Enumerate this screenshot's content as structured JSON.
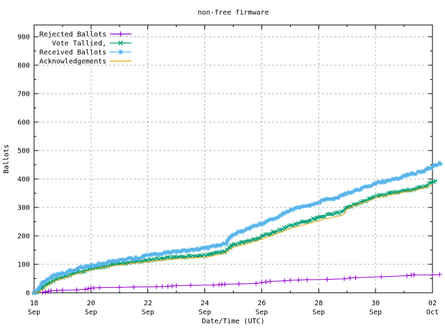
{
  "page": {
    "background": "#ffffff",
    "border_color": "#000000",
    "grid_color": "#b5b5b5"
  },
  "chart_data": {
    "type": "line",
    "title": "non-free firmware",
    "xlabel": "Date/Time (UTC)",
    "ylabel": "Ballots",
    "x_domain_labels": [
      "18 Sep",
      "02 Oct"
    ],
    "x_unit": "days from first tick (18 Sep) to last tick (02 Oct), 14 days total",
    "ylim": [
      0,
      940
    ],
    "grid": "dashed gray at major ticks",
    "legend_position": "top-left inside plot",
    "series": [
      {
        "name": "Rejected Ballots",
        "color": "#9400d3",
        "marker": "plus",
        "marker_mode": "points",
        "points": [
          [
            0.3,
            1
          ],
          [
            0.4,
            3
          ],
          [
            0.5,
            5
          ],
          [
            0.6,
            7
          ],
          [
            0.8,
            8
          ],
          [
            1,
            9
          ],
          [
            1.5,
            10
          ],
          [
            1.8,
            12
          ],
          [
            1.9,
            14
          ],
          [
            2,
            16
          ],
          [
            2.1,
            17
          ],
          [
            2.3,
            18
          ],
          [
            3,
            19
          ],
          [
            3.5,
            20
          ],
          [
            4.3,
            21
          ],
          [
            4.5,
            22
          ],
          [
            4.7,
            23
          ],
          [
            4.85,
            24
          ],
          [
            5,
            25
          ],
          [
            5.5,
            26
          ],
          [
            6.3,
            27
          ],
          [
            6.5,
            28
          ],
          [
            6.6,
            29
          ],
          [
            6.7,
            30
          ],
          [
            7.2,
            31
          ],
          [
            7.8,
            33
          ],
          [
            8,
            36
          ],
          [
            8.15,
            38
          ],
          [
            8.3,
            40
          ],
          [
            8.8,
            42
          ],
          [
            9,
            44
          ],
          [
            9.3,
            45
          ],
          [
            9.6,
            46
          ],
          [
            10.3,
            47
          ],
          [
            10.9,
            49
          ],
          [
            11.1,
            52
          ],
          [
            11.3,
            53
          ],
          [
            12.2,
            56
          ],
          [
            13.1,
            60
          ],
          [
            13.25,
            62
          ],
          [
            13.35,
            63
          ],
          [
            14,
            63
          ],
          [
            14.25,
            64
          ]
        ]
      },
      {
        "name": "Vote Tallied,",
        "color": "#009e73",
        "marker": "cross",
        "marker_mode": "dense",
        "points": [
          [
            0,
            0
          ],
          [
            0.15,
            6
          ],
          [
            0.3,
            18
          ],
          [
            0.45,
            30
          ],
          [
            0.6,
            40
          ],
          [
            0.8,
            48
          ],
          [
            1,
            54
          ],
          [
            1.2,
            61
          ],
          [
            1.4,
            68
          ],
          [
            1.6,
            74
          ],
          [
            1.8,
            79
          ],
          [
            2,
            84
          ],
          [
            2.2,
            89
          ],
          [
            2.5,
            94
          ],
          [
            2.8,
            99
          ],
          [
            3,
            102
          ],
          [
            3.3,
            106
          ],
          [
            3.7,
            111
          ],
          [
            4,
            115
          ],
          [
            4.3,
            119
          ],
          [
            4.7,
            123
          ],
          [
            5,
            125
          ],
          [
            5.4,
            128
          ],
          [
            5.8,
            130
          ],
          [
            6,
            131
          ],
          [
            6.2,
            134
          ],
          [
            6.5,
            142
          ],
          [
            6.75,
            148
          ],
          [
            6.8,
            153
          ],
          [
            6.9,
            161
          ],
          [
            7,
            168
          ],
          [
            7.2,
            174
          ],
          [
            7.5,
            181
          ],
          [
            7.8,
            190
          ],
          [
            8,
            197
          ],
          [
            8.3,
            209
          ],
          [
            8.6,
            220
          ],
          [
            8.8,
            228
          ],
          [
            9,
            237
          ],
          [
            9.3,
            245
          ],
          [
            9.6,
            253
          ],
          [
            9.8,
            259
          ],
          [
            10,
            266
          ],
          [
            10.3,
            273
          ],
          [
            10.6,
            279
          ],
          [
            10.8,
            284
          ],
          [
            10.9,
            289
          ],
          [
            11,
            301
          ],
          [
            11.3,
            312
          ],
          [
            11.6,
            323
          ],
          [
            11.8,
            330
          ],
          [
            12,
            339
          ],
          [
            12.3,
            344
          ],
          [
            12.6,
            351
          ],
          [
            12.8,
            355
          ],
          [
            13,
            359
          ],
          [
            13.3,
            364
          ],
          [
            13.6,
            371
          ],
          [
            13.8,
            377
          ],
          [
            14,
            388
          ],
          [
            14.15,
            394
          ]
        ]
      },
      {
        "name": "Received Ballots",
        "color": "#56b4e9",
        "marker": "asterisk",
        "marker_mode": "dense",
        "points": [
          [
            0,
            0
          ],
          [
            0.08,
            5
          ],
          [
            0.15,
            14
          ],
          [
            0.25,
            28
          ],
          [
            0.35,
            40
          ],
          [
            0.5,
            50
          ],
          [
            0.65,
            57
          ],
          [
            0.8,
            62
          ],
          [
            1,
            67
          ],
          [
            1.2,
            74
          ],
          [
            1.4,
            82
          ],
          [
            1.6,
            88
          ],
          [
            1.8,
            91
          ],
          [
            2,
            95
          ],
          [
            2.2,
            100
          ],
          [
            2.5,
            105
          ],
          [
            2.8,
            110
          ],
          [
            3,
            113
          ],
          [
            3.3,
            118
          ],
          [
            3.7,
            124
          ],
          [
            4,
            131
          ],
          [
            4.3,
            136
          ],
          [
            4.7,
            141
          ],
          [
            5,
            145
          ],
          [
            5.4,
            149
          ],
          [
            5.8,
            153
          ],
          [
            6,
            156
          ],
          [
            6.2,
            160
          ],
          [
            6.5,
            168
          ],
          [
            6.75,
            176
          ],
          [
            6.8,
            186
          ],
          [
            6.9,
            198
          ],
          [
            7,
            206
          ],
          [
            7.2,
            213
          ],
          [
            7.5,
            223
          ],
          [
            7.8,
            235
          ],
          [
            8,
            243
          ],
          [
            8.3,
            257
          ],
          [
            8.6,
            270
          ],
          [
            8.8,
            280
          ],
          [
            9,
            290
          ],
          [
            9.3,
            299
          ],
          [
            9.6,
            306
          ],
          [
            9.8,
            312
          ],
          [
            10,
            318
          ],
          [
            10.3,
            327
          ],
          [
            10.6,
            334
          ],
          [
            10.8,
            341
          ],
          [
            11,
            349
          ],
          [
            11.3,
            360
          ],
          [
            11.6,
            369
          ],
          [
            11.8,
            376
          ],
          [
            12,
            385
          ],
          [
            12.3,
            392
          ],
          [
            12.6,
            398
          ],
          [
            12.8,
            403
          ],
          [
            13,
            410
          ],
          [
            13.3,
            418
          ],
          [
            13.6,
            426
          ],
          [
            13.8,
            433
          ],
          [
            14,
            444
          ],
          [
            14.15,
            451
          ],
          [
            14.3,
            456
          ]
        ]
      },
      {
        "name": "Acknowledgements",
        "color": "#e69f00",
        "marker": "none",
        "marker_mode": "none",
        "points": [
          [
            0,
            0
          ],
          [
            0.2,
            4
          ],
          [
            0.35,
            15
          ],
          [
            0.5,
            27
          ],
          [
            0.65,
            37
          ],
          [
            0.85,
            46
          ],
          [
            1,
            50
          ],
          [
            1.2,
            57
          ],
          [
            1.4,
            64
          ],
          [
            1.6,
            70
          ],
          [
            1.8,
            75
          ],
          [
            2,
            80
          ],
          [
            2.2,
            85
          ],
          [
            2.5,
            90
          ],
          [
            2.8,
            95
          ],
          [
            3,
            98
          ],
          [
            3.3,
            102
          ],
          [
            3.7,
            106
          ],
          [
            4,
            109
          ],
          [
            4.3,
            113
          ],
          [
            4.7,
            117
          ],
          [
            5,
            119
          ],
          [
            5.4,
            122
          ],
          [
            5.8,
            124
          ],
          [
            6,
            125
          ],
          [
            6.2,
            128
          ],
          [
            6.5,
            135
          ],
          [
            6.75,
            141
          ],
          [
            6.8,
            146
          ],
          [
            6.9,
            154
          ],
          [
            7,
            160
          ],
          [
            7.2,
            166
          ],
          [
            7.5,
            173
          ],
          [
            7.8,
            182
          ],
          [
            8,
            189
          ],
          [
            8.3,
            200
          ],
          [
            8.6,
            210
          ],
          [
            8.8,
            218
          ],
          [
            9,
            226
          ],
          [
            9.3,
            234
          ],
          [
            9.6,
            242
          ],
          [
            9.8,
            248
          ],
          [
            10,
            254
          ],
          [
            10.3,
            261
          ],
          [
            10.6,
            267
          ],
          [
            10.8,
            272
          ],
          [
            10.9,
            277
          ],
          [
            11,
            296
          ],
          [
            11.3,
            307
          ],
          [
            11.6,
            318
          ],
          [
            11.8,
            325
          ],
          [
            12,
            334
          ],
          [
            12.3,
            339
          ],
          [
            12.6,
            346
          ],
          [
            12.8,
            350
          ],
          [
            13,
            354
          ],
          [
            13.3,
            359
          ],
          [
            13.6,
            366
          ],
          [
            13.8,
            371
          ],
          [
            14,
            381
          ]
        ]
      }
    ]
  },
  "axes": {
    "ylabel": "Ballots",
    "xlabel": "Date/Time (UTC)",
    "y_ticks": [
      {
        "value": 0,
        "label": "0"
      },
      {
        "value": 100,
        "label": "100"
      },
      {
        "value": 200,
        "label": "200"
      },
      {
        "value": 300,
        "label": "300"
      },
      {
        "value": 400,
        "label": "400"
      },
      {
        "value": 500,
        "label": "500"
      },
      {
        "value": 600,
        "label": "600"
      },
      {
        "value": 700,
        "label": "700"
      },
      {
        "value": 800,
        "label": "800"
      },
      {
        "value": 900,
        "label": "900"
      }
    ],
    "y_minor_values": [
      50,
      150,
      250,
      350,
      450,
      550,
      650,
      750,
      850
    ],
    "x_ticks": [
      {
        "day": 0,
        "line1": "18",
        "line2": "Sep"
      },
      {
        "day": 2,
        "line1": "20",
        "line2": "Sep"
      },
      {
        "day": 4,
        "line1": "22",
        "line2": "Sep"
      },
      {
        "day": 6,
        "line1": "24",
        "line2": "Sep"
      },
      {
        "day": 8,
        "line1": "26",
        "line2": "Sep"
      },
      {
        "day": 10,
        "line1": "28",
        "line2": "Sep"
      },
      {
        "day": 12,
        "line1": "30",
        "line2": "Sep"
      },
      {
        "day": 14,
        "line1": "02",
        "line2": "Oct"
      }
    ],
    "x_minor_days": [
      1,
      3,
      5,
      7,
      9,
      11,
      13
    ]
  }
}
